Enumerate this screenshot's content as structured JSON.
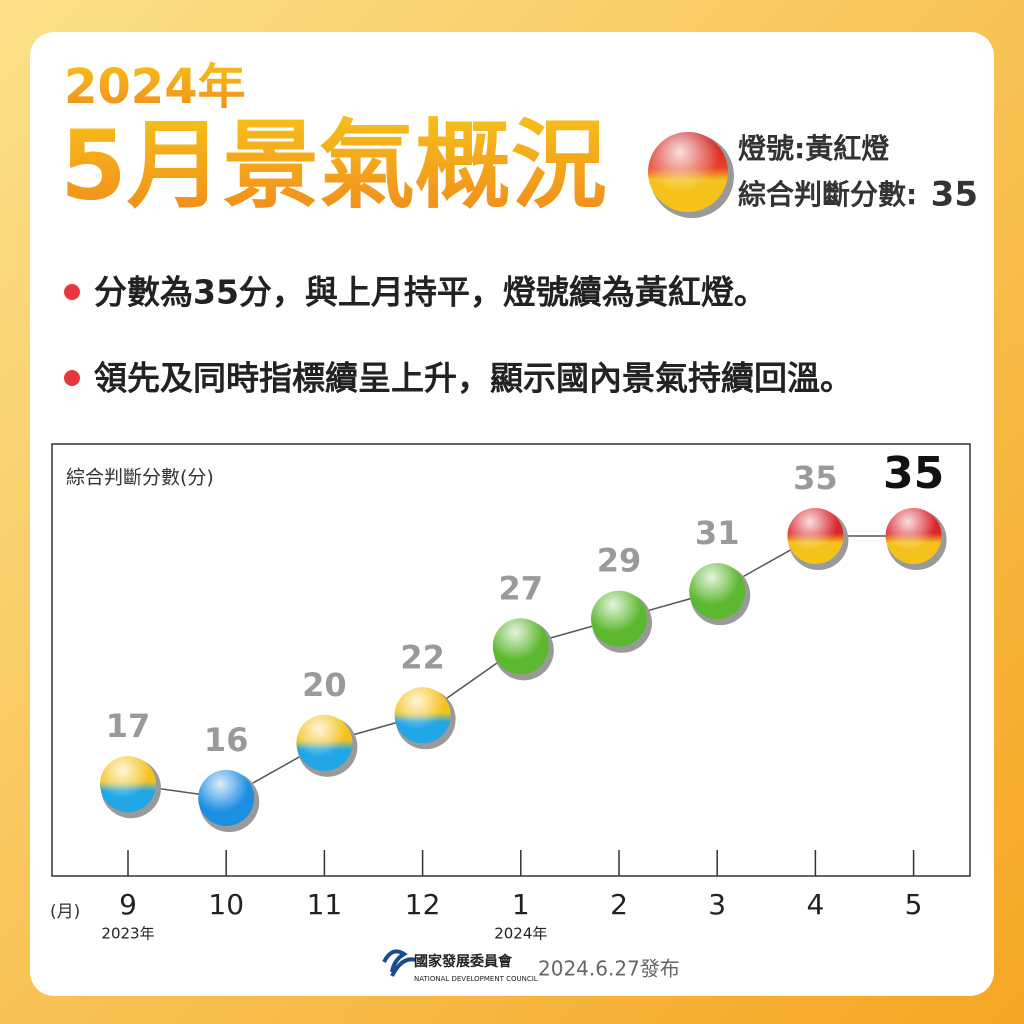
{
  "header": {
    "year": "2024年",
    "title": "5月景氣概況",
    "signal_label": "燈號:黃紅燈",
    "score_label": "綜合判斷分數:",
    "score": 35
  },
  "bullets": [
    "分數為35分，與上月持平，燈號續為黃紅燈。",
    "領先及同時指標續呈上升，顯示國內景氣持續回溫。"
  ],
  "chart_data": {
    "type": "line",
    "y_label": "綜合判斷分數(分)",
    "x_label": "(月)",
    "categories": [
      "9",
      "10",
      "11",
      "12",
      "1",
      "2",
      "3",
      "4",
      "5"
    ],
    "year_labels": [
      "2023年",
      null,
      null,
      null,
      "2024年",
      null,
      null,
      null,
      null
    ],
    "values": [
      17,
      16,
      20,
      22,
      27,
      29,
      31,
      35,
      35
    ],
    "line_color": "#555555",
    "point_colors": [
      [
        "#f5c21b",
        "#22a7e6"
      ],
      [
        "#1d8fe3",
        "#1d8fe3"
      ],
      [
        "#f5c21b",
        "#22a7e6"
      ],
      [
        "#f5c21b",
        "#22a7e6"
      ],
      [
        "#5cb82e",
        "#5cb82e"
      ],
      [
        "#5cb82e",
        "#5cb82e"
      ],
      [
        "#5cb82e",
        "#5cb82e"
      ],
      [
        "#d9262b",
        "#f5c21b"
      ],
      [
        "#d9262b",
        "#f5c21b"
      ]
    ]
  },
  "footer": {
    "org": "國家發展委員會",
    "org_en": "NATIONAL DEVELOPMENT COUNCIL",
    "date": "2024.6.27發布"
  }
}
